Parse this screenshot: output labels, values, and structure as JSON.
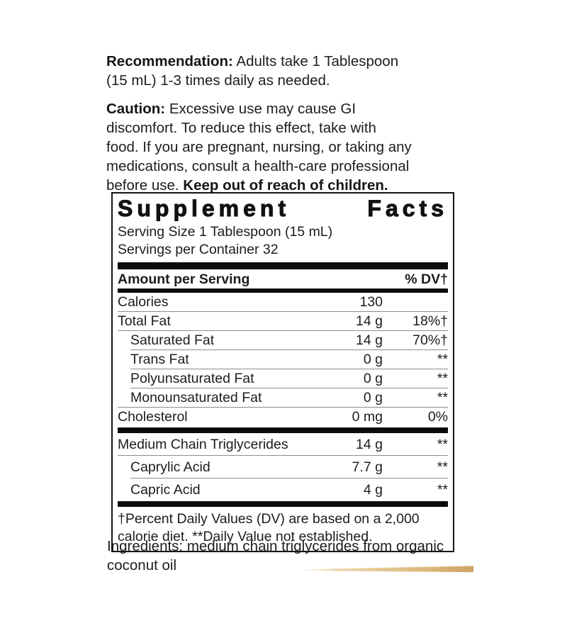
{
  "label": {
    "recommendation": {
      "lead": "Recommendation:",
      "body": "Adults take 1 Tablespoon (15 mL) 1-3 times daily as needed."
    },
    "caution": {
      "lead": "Caution:",
      "body": "Excessive use may cause GI discomfort. To reduce this effect, take with food. If you are pregnant, nursing, or taking any medications, consult a health-care professional before use.",
      "bold_tail": "Keep out of reach of children."
    },
    "facts": {
      "title": "Supplement Facts",
      "serving_size": "Serving Size 1 Tablespoon (15 mL)",
      "servings_per_container": "Servings per Container 32",
      "col_left": "Amount per Serving",
      "col_right": "% DV†",
      "sections": [
        {
          "rows": [
            {
              "name": "Calories",
              "amount": "130",
              "dv": "",
              "indent": false
            },
            {
              "name": "Total Fat",
              "amount": "14 g",
              "dv": "18%†",
              "indent": false
            },
            {
              "name": "Saturated Fat",
              "amount": "14 g",
              "dv": "70%†",
              "indent": true
            },
            {
              "name": "Trans Fat",
              "amount": "0 g",
              "dv": "**",
              "indent": true
            },
            {
              "name": "Polyunsaturated Fat",
              "amount": "0 g",
              "dv": "**",
              "indent": true
            },
            {
              "name": "Monounsaturated Fat",
              "amount": "0 g",
              "dv": "**",
              "indent": true
            },
            {
              "name": "Cholesterol",
              "amount": "0 mg",
              "dv": "0%",
              "indent": false
            }
          ]
        },
        {
          "rows": [
            {
              "name": "Medium Chain Triglycerides",
              "amount": "14 g",
              "dv": "**",
              "indent": false
            },
            {
              "name": "Caprylic Acid",
              "amount": "7.7 g",
              "dv": "**",
              "indent": true
            },
            {
              "name": "Capric Acid",
              "amount": "4 g",
              "dv": "**",
              "indent": true
            }
          ]
        }
      ],
      "footnote": "†Percent Daily Values (DV) are based on a 2,000 calorie diet. **Daily Value not established."
    },
    "ingredients": "Ingredients: medium chain triglycerides from organic coconut oil"
  },
  "colors": {
    "text": "#1d1d1d",
    "bar": "#0c0c0c",
    "hairline": "#8d8d8d",
    "border": "#141414",
    "gold_accent": "#dfbc82"
  }
}
